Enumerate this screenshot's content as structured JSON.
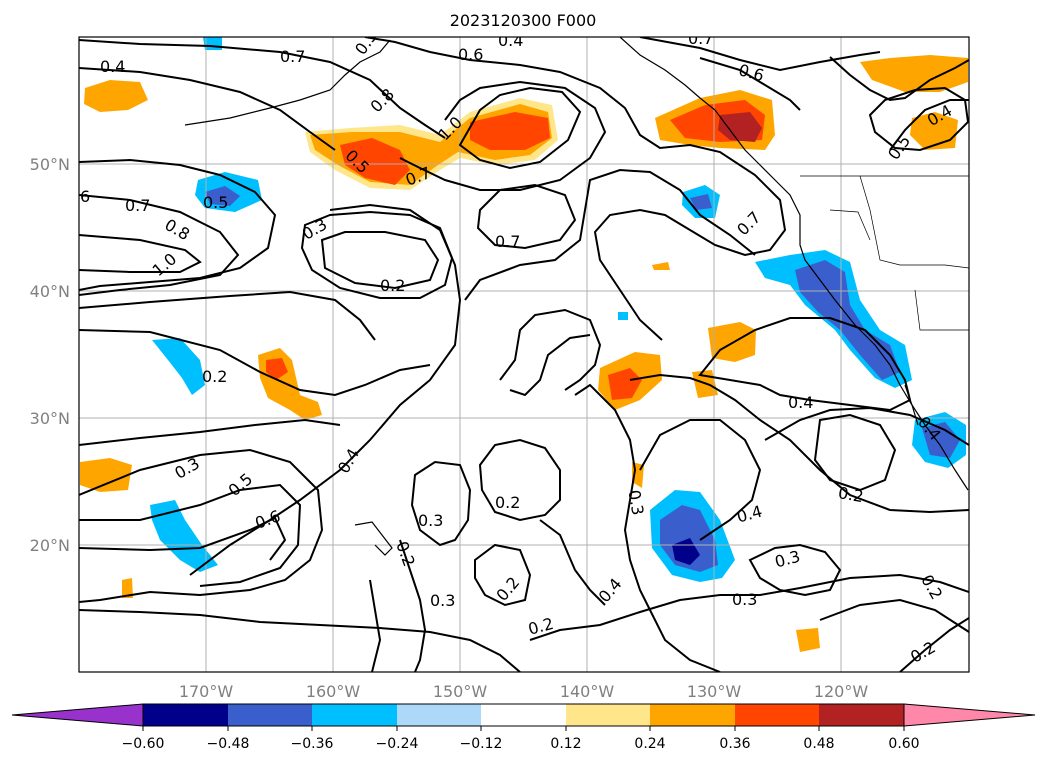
{
  "title": "2023120300 F000",
  "lon_ticks": [
    "170°W",
    "160°W",
    "150°W",
    "140°W",
    "130°W",
    "120°W"
  ],
  "lat_ticks": [
    "50°N",
    "40°N",
    "30°N",
    "20°N"
  ],
  "colorbar": {
    "ticks": [
      "−0.60",
      "−0.48",
      "−0.36",
      "−0.24",
      "−0.12",
      "0.12",
      "0.24",
      "0.36",
      "0.48",
      "0.60"
    ],
    "colors": [
      "#9932cc",
      "#00008b",
      "#3a5fcd",
      "#00bfff",
      "#add8f7",
      "#ffffff",
      "#ffe68a",
      "#ffa500",
      "#ff4500",
      "#b22222",
      "#ff88aa"
    ]
  },
  "contour_labels": [
    "0.4",
    "0.7",
    "0.5",
    "0.6",
    "0.4",
    "0.7",
    "0.6",
    "0.4",
    "0.8",
    "1.0",
    "0.5",
    "0.7",
    "0.5",
    "6",
    "0.7",
    "0.8",
    "1.0",
    "0.5",
    "0.3",
    "0.7",
    "0.7",
    "0.2",
    "0.2",
    "0.3",
    "0.5",
    "0.6",
    "0.4",
    "0.2",
    "0.3",
    "0.2",
    "0.2",
    "0.3",
    "0.2",
    "0.3",
    "0.4",
    "0.4",
    "0.3",
    "0.3",
    "0.4",
    "0.2",
    "0.2",
    "0.2",
    "0.4",
    "0.5",
    "0.4"
  ]
}
